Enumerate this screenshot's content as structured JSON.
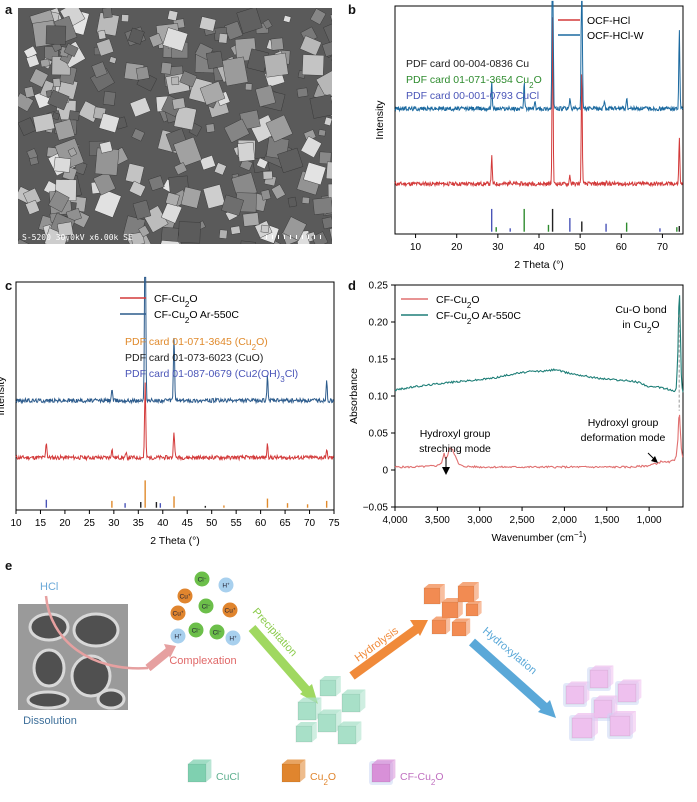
{
  "panels": {
    "a": {
      "label": "a",
      "sem_caption": "S-5200 30.0kV x6.00k SE"
    },
    "b": {
      "label": "b",
      "chart_data": {
        "type": "line",
        "xlabel": "2 Theta (°)",
        "ylabel": "Intensity",
        "xlim": [
          5,
          75
        ],
        "xticks": [
          10,
          20,
          30,
          40,
          50,
          60,
          70
        ],
        "legend_position": "top-right",
        "legend": [
          "OCF-HCl",
          "OCF-HCl-W"
        ],
        "pdf_cards": [
          {
            "text": "PDF card 00-004-0836 Cu",
            "color": "#222222"
          },
          {
            "text": "PDF card 01-071-3654 Cu",
            "sub": "2",
            "tail": "O",
            "color": "#2e8b2e"
          },
          {
            "text": "PDF card 00-001-0793 CuCl",
            "color": "#4a55b8"
          }
        ],
        "series": [
          {
            "name": "OCF-HCl",
            "color": "#d33a3a",
            "base": 0.22,
            "peaks": [
              [
                28.5,
                0.12
              ],
              [
                33,
                0.02
              ],
              [
                43.3,
                0.75
              ],
              [
                47.5,
                0.04
              ],
              [
                50.4,
                0.5
              ],
              [
                56.5,
                0.015
              ],
              [
                74.1,
                0.2
              ]
            ]
          },
          {
            "name": "OCF-HCl-W",
            "color": "#1c6aa0",
            "base": 0.55,
            "peaks": [
              [
                28.5,
                0.12
              ],
              [
                36.4,
                0.11
              ],
              [
                39,
                0.03
              ],
              [
                43.3,
                1.25
              ],
              [
                47.5,
                0.05
              ],
              [
                50.4,
                0.85
              ],
              [
                55.9,
                0.04
              ],
              [
                61.3,
                0.05
              ],
              [
                74.1,
                0.35
              ]
            ]
          }
        ],
        "ref_lines": [
          {
            "color": "#222222",
            "positions": [
              43.3,
              50.4,
              74.1
            ],
            "heights": [
              0.1,
              0.045,
              0.025
            ]
          },
          {
            "color": "#2e8b2e",
            "positions": [
              29.6,
              36.4,
              42.3,
              61.3,
              73.5
            ],
            "heights": [
              0.02,
              0.1,
              0.03,
              0.04,
              0.02
            ]
          },
          {
            "color": "#4a55b8",
            "positions": [
              28.5,
              33,
              47.5,
              56.3,
              69.4
            ],
            "heights": [
              0.1,
              0.015,
              0.06,
              0.035,
              0.015
            ]
          }
        ]
      }
    },
    "c": {
      "label": "c",
      "chart_data": {
        "type": "line",
        "xlabel": "2 Theta (°)",
        "ylabel": "Intensity",
        "xlim": [
          10,
          75
        ],
        "xticks": [
          10,
          15,
          20,
          25,
          30,
          35,
          40,
          45,
          50,
          55,
          60,
          65,
          70,
          75
        ],
        "legend_position": "top-center",
        "legend": [
          {
            "text": "CF-Cu",
            "sub": "2",
            "tail": "O"
          },
          {
            "text": "CF-Cu",
            "sub": "2",
            "tail": "O Ar-550C"
          }
        ],
        "pdf_cards": [
          {
            "text": "PDF card 01-071-3645 (Cu",
            "sub": "2",
            "tail": "O)",
            "color": "#e08a2c"
          },
          {
            "text": "PDF card 01-073-6023 (CuO)",
            "color": "#222222"
          },
          {
            "text": "PDF card 01-087-0679 (Cu2(OH)",
            "sub": "3",
            "tail": "Cl)",
            "color": "#4a55b8"
          }
        ],
        "series": [
          {
            "name": "CF-Cu2O",
            "color": "#d33a3a",
            "base": 0.23,
            "peaks": [
              [
                16.2,
                0.07
              ],
              [
                29.6,
                0.04
              ],
              [
                32.5,
                0.015
              ],
              [
                36.4,
                0.33
              ],
              [
                42.3,
                0.12
              ],
              [
                61.4,
                0.06
              ],
              [
                73.5,
                0.03
              ]
            ]
          },
          {
            "name": "CF-Cu2O Ar-550C",
            "color": "#2c5b8c",
            "base": 0.48,
            "peaks": [
              [
                29.6,
                0.05
              ],
              [
                36.4,
                0.9
              ],
              [
                42.3,
                0.28
              ],
              [
                61.4,
                0.11
              ],
              [
                73.5,
                0.09
              ]
            ]
          }
        ],
        "ref_lines": [
          {
            "color": "#e08a2c",
            "positions": [
              29.6,
              36.4,
              42.3,
              52.5,
              61.4,
              65.5,
              69.6,
              73.5
            ],
            "heights": [
              0.03,
              0.12,
              0.05,
              0.01,
              0.04,
              0.02,
              0.015,
              0.03
            ]
          },
          {
            "color": "#222222",
            "positions": [
              35.5,
              38.7,
              48.7
            ],
            "heights": [
              0.025,
              0.025,
              0.008
            ]
          },
          {
            "color": "#4a55b8",
            "positions": [
              16.2,
              32.3,
              39.5
            ],
            "heights": [
              0.035,
              0.02,
              0.02
            ]
          }
        ]
      }
    },
    "d": {
      "label": "d",
      "chart_data": {
        "type": "line",
        "xlabel": "Wavenumber (cm",
        "xlabel_sup": "−1",
        "xlabel_tail": ")",
        "ylabel": "Absorbance",
        "xlim": [
          4000,
          600
        ],
        "ylim": [
          -0.05,
          0.25
        ],
        "xticks": [
          4000,
          3500,
          3000,
          2500,
          2000,
          1500,
          1000
        ],
        "xtick_labels": [
          "4,000",
          "3,500",
          "3,000",
          "2,500",
          "2,000",
          "1,500",
          "1,000"
        ],
        "yticks": [
          -0.05,
          0,
          0.05,
          0.1,
          0.15,
          0.2,
          0.25
        ],
        "ytick_labels": [
          "−0.05",
          "0",
          "0.05",
          "0.10",
          "0.15",
          "0.20",
          "0.25"
        ],
        "legend": [
          {
            "text": "CF-Cu",
            "sub": "2",
            "tail": "O"
          },
          {
            "text": "CF-Cu",
            "sub": "2",
            "tail": "O Ar-550C"
          }
        ],
        "annotations": [
          {
            "lines": [
              "Cu-O bond",
              "in Cu2O"
            ]
          },
          {
            "lines": [
              "Hydroxyl group",
              "streching mode"
            ]
          },
          {
            "lines": [
              "Hydroxyl group",
              "deformation mode"
            ]
          }
        ],
        "series": [
          {
            "name": "CF-Cu2O",
            "color": "#e07070",
            "x": [
              4000,
              3800,
              3600,
              3500,
              3450,
              3420,
              3400,
              3380,
              3350,
              3320,
              3300,
              3250,
              3200,
              3000,
              2500,
              2000,
              1500,
              1200,
              1000,
              950,
              900,
              850,
              800,
              750,
              700,
              680,
              660,
              650,
              640,
              630,
              620,
              610,
              600
            ],
            "y": [
              0.004,
              0.004,
              0.005,
              0.006,
              0.01,
              0.022,
              0.014,
              0.02,
              0.03,
              0.028,
              0.022,
              0.008,
              0.005,
              0.004,
              0.004,
              0.004,
              0.004,
              0.004,
              0.006,
              0.008,
              0.009,
              0.012,
              0.01,
              0.011,
              0.014,
              0.02,
              0.04,
              0.07,
              0.075,
              0.05,
              0.03,
              0.02,
              0.018
            ]
          },
          {
            "name": "CF-Cu2O Ar-550C",
            "color": "#1f7f78",
            "x": [
              4000,
              3800,
              3600,
              3400,
              3200,
              3000,
              2800,
              2600,
              2400,
              2200,
              2100,
              2000,
              1800,
              1600,
              1400,
              1200,
              1100,
              1000,
              900,
              800,
              700,
              680,
              660,
              650,
              640,
              630,
              620,
              610,
              600
            ],
            "y": [
              0.108,
              0.112,
              0.115,
              0.118,
              0.12,
              0.122,
              0.125,
              0.13,
              0.133,
              0.134,
              0.136,
              0.132,
              0.128,
              0.124,
              0.122,
              0.12,
              0.118,
              0.112,
              0.112,
              0.11,
              0.106,
              0.11,
              0.16,
              0.22,
              0.235,
              0.18,
              0.13,
              0.11,
              0.105
            ]
          }
        ]
      }
    },
    "e": {
      "label": "e",
      "hcl": "HCl",
      "complexation": "Complexation",
      "dissolution": "Dissolution",
      "precipitation": "Precipitation",
      "hydrolysis": "Hydrolysis",
      "hydroxylation": "Hydroxylation",
      "ions": [
        {
          "t": "Cl",
          "s": "−",
          "c": "#6cbf4a"
        },
        {
          "t": "Cu",
          "s": "+",
          "c": "#e0852e"
        },
        {
          "t": "H",
          "s": "+",
          "c": "#a8d0ee"
        },
        {
          "t": "Cu",
          "s": "+",
          "c": "#e0852e"
        },
        {
          "t": "Cl",
          "s": "−",
          "c": "#6cbf4a"
        },
        {
          "t": "Cu",
          "s": "+",
          "c": "#e0852e"
        },
        {
          "t": "H",
          "s": "+",
          "c": "#a8d0ee"
        },
        {
          "t": "Cl",
          "s": "−",
          "c": "#6cbf4a"
        },
        {
          "t": "Cl",
          "s": "−",
          "c": "#6cbf4a"
        },
        {
          "t": "H",
          "s": "+",
          "c": "#a8d0ee"
        }
      ],
      "legend": [
        {
          "text": "CuCl",
          "color": "#7fd0b0"
        },
        {
          "text": "Cu",
          "sub": "2",
          "tail": "O",
          "color": "#e0852e"
        },
        {
          "text": "CF-Cu",
          "sub": "2",
          "tail": "O",
          "color": "#d890d8"
        }
      ]
    }
  }
}
